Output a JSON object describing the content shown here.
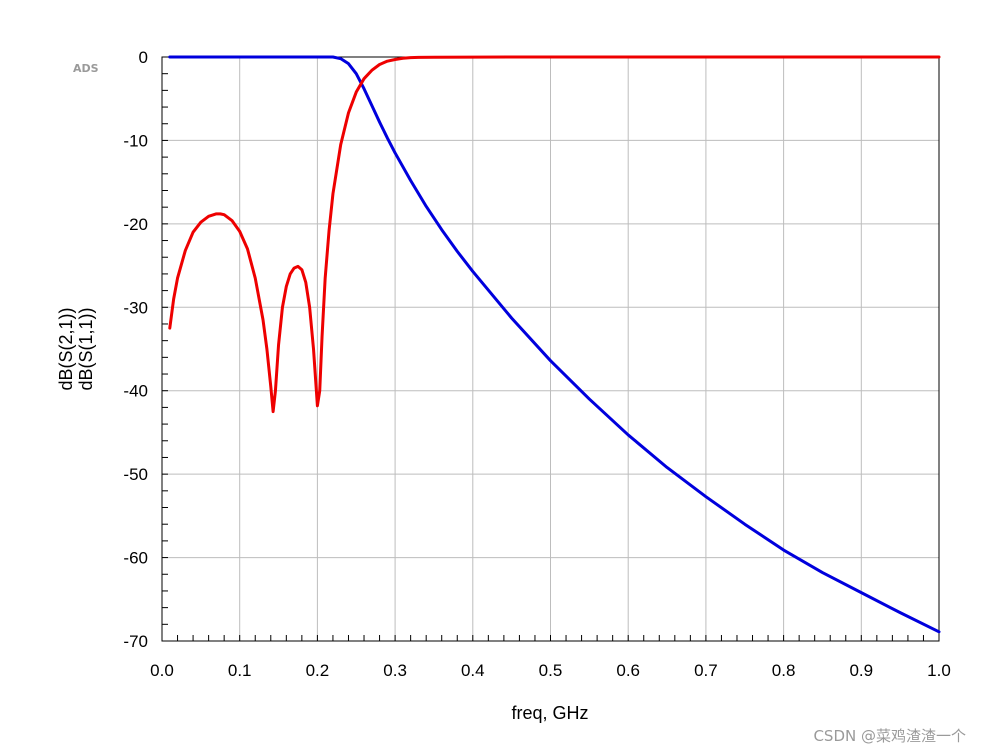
{
  "logo": "ADS",
  "watermark": "CSDN @菜鸡渣渣一个",
  "chart_data": {
    "type": "line",
    "xlabel": "freq, GHz",
    "ylabel": "",
    "xlim": [
      0.0,
      1.0
    ],
    "ylim": [
      -70,
      0
    ],
    "xticks": [
      "0.0",
      "0.1",
      "0.2",
      "0.3",
      "0.4",
      "0.5",
      "0.6",
      "0.7",
      "0.8",
      "0.9",
      "1.0"
    ],
    "yticks": [
      "0",
      "-10",
      "-20",
      "-30",
      "-40",
      "-50",
      "-60",
      "-70"
    ],
    "grid": true,
    "series": [
      {
        "name": "dB(S(2,1))",
        "color": "#0000dd",
        "x": [
          0.01,
          0.05,
          0.1,
          0.15,
          0.2,
          0.22,
          0.23,
          0.24,
          0.25,
          0.26,
          0.27,
          0.28,
          0.29,
          0.3,
          0.32,
          0.34,
          0.36,
          0.38,
          0.4,
          0.45,
          0.5,
          0.55,
          0.6,
          0.65,
          0.7,
          0.75,
          0.8,
          0.85,
          0.9,
          0.95,
          1.0
        ],
        "y": [
          0,
          0,
          0,
          0,
          0,
          0,
          -0.2,
          -0.8,
          -2.0,
          -3.8,
          -5.8,
          -7.8,
          -9.7,
          -11.5,
          -14.8,
          -17.9,
          -20.7,
          -23.3,
          -25.7,
          -31.3,
          -36.4,
          -41.0,
          -45.3,
          -49.2,
          -52.7,
          -56.0,
          -59.1,
          -61.8,
          -64.2,
          -66.6,
          -68.9
        ]
      },
      {
        "name": "dB(S(1,1))",
        "color": "#ee0000",
        "x": [
          0.01,
          0.015,
          0.02,
          0.03,
          0.04,
          0.05,
          0.06,
          0.07,
          0.075,
          0.08,
          0.09,
          0.1,
          0.11,
          0.12,
          0.13,
          0.135,
          0.14,
          0.143,
          0.146,
          0.15,
          0.155,
          0.16,
          0.165,
          0.17,
          0.175,
          0.18,
          0.185,
          0.19,
          0.195,
          0.2,
          0.203,
          0.206,
          0.21,
          0.215,
          0.22,
          0.23,
          0.24,
          0.25,
          0.26,
          0.27,
          0.28,
          0.29,
          0.3,
          0.31,
          0.32,
          0.33,
          0.35,
          0.4,
          0.5,
          0.6,
          0.7,
          0.8,
          0.9,
          1.0
        ],
        "y": [
          -32.5,
          -29.0,
          -26.5,
          -23.2,
          -21.0,
          -19.8,
          -19.1,
          -18.8,
          -18.8,
          -18.9,
          -19.6,
          -20.9,
          -23.0,
          -26.5,
          -31.5,
          -35.0,
          -39.5,
          -42.5,
          -40.0,
          -34.5,
          -30.0,
          -27.5,
          -26.0,
          -25.3,
          -25.1,
          -25.5,
          -27.0,
          -30.0,
          -35.0,
          -41.8,
          -40.0,
          -33.5,
          -26.5,
          -20.8,
          -16.4,
          -10.5,
          -6.7,
          -4.2,
          -2.6,
          -1.6,
          -0.9,
          -0.5,
          -0.3,
          -0.15,
          -0.08,
          -0.05,
          -0.03,
          -0.01,
          0,
          0,
          0,
          0,
          0,
          0
        ]
      }
    ]
  }
}
